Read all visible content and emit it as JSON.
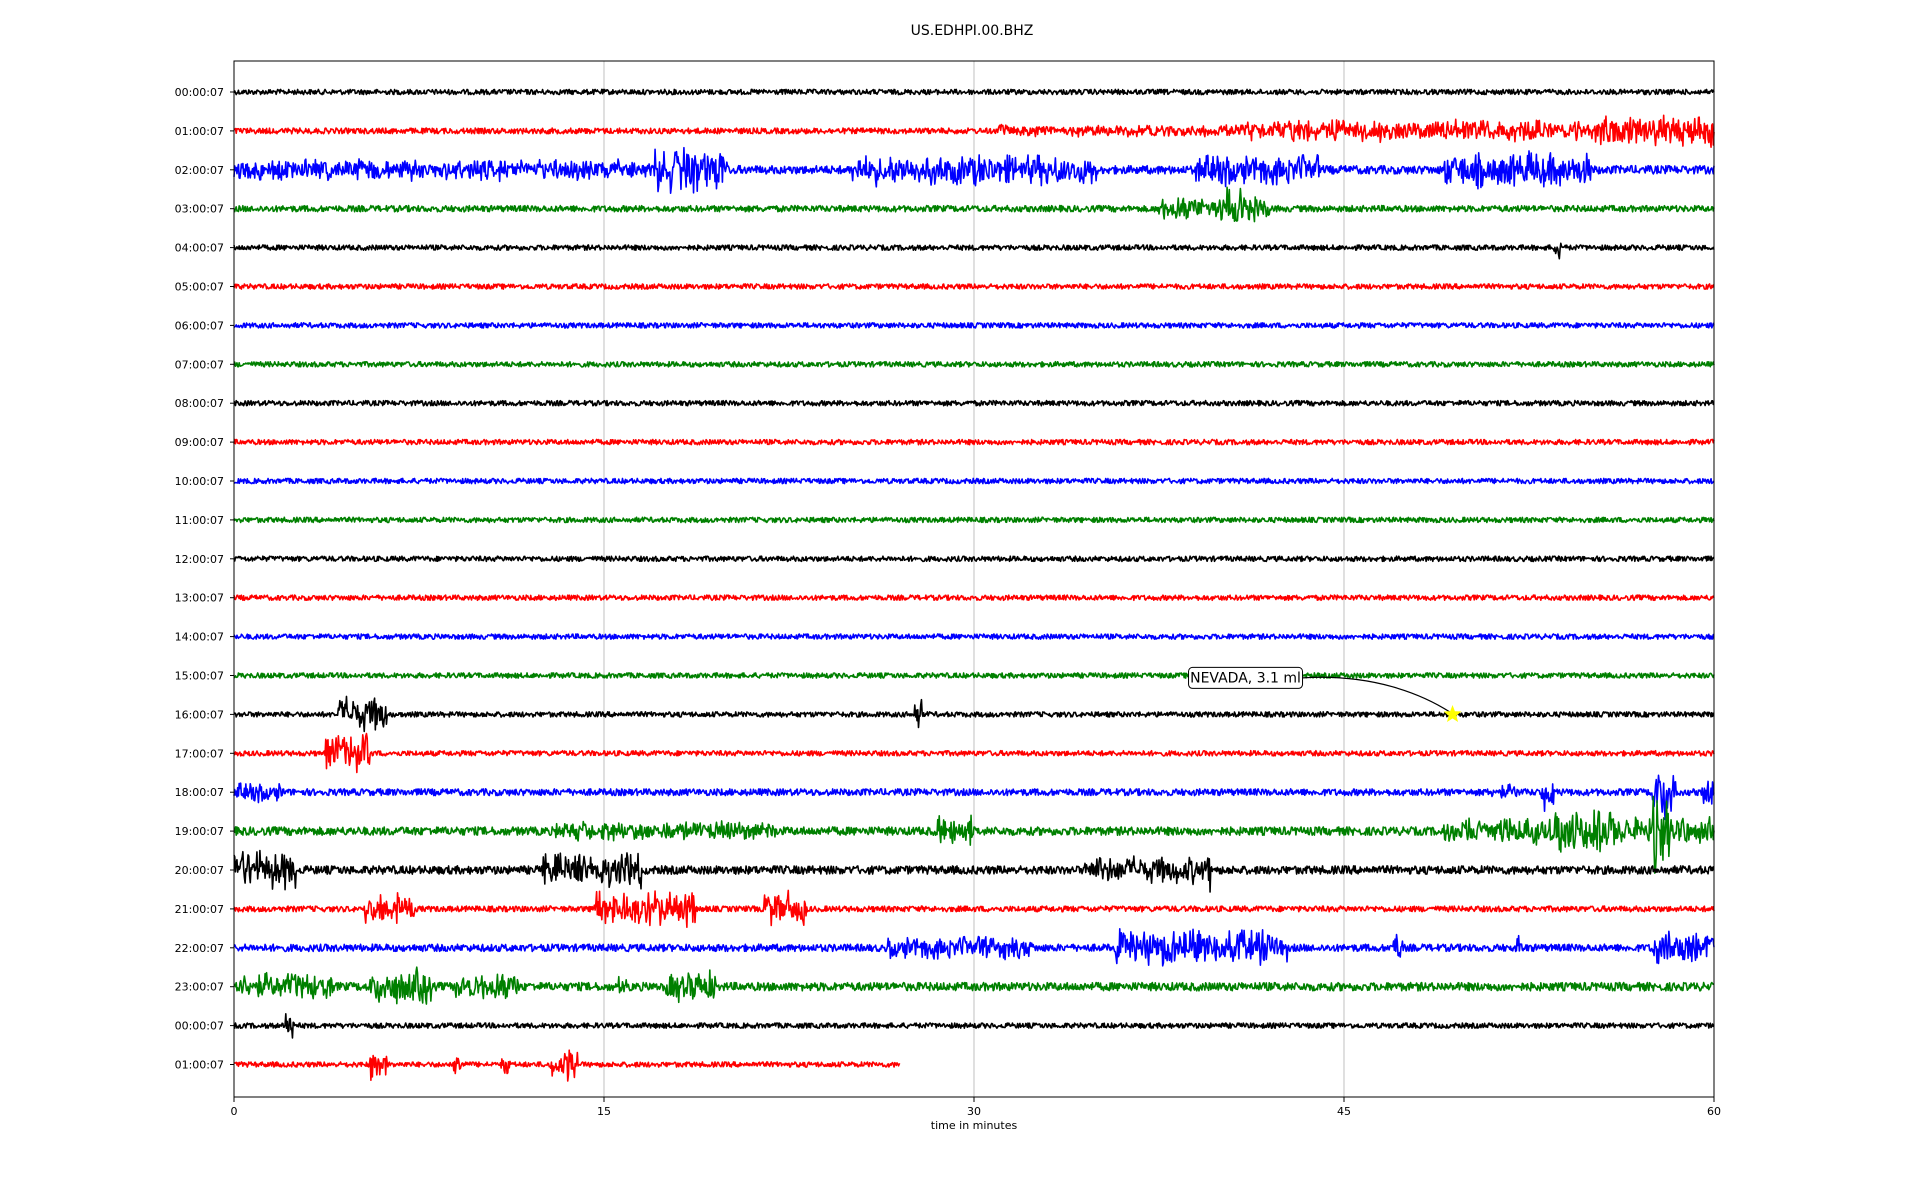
{
  "chart_data": {
    "type": "line",
    "title": "US.EDHPI.00.BHZ",
    "xlabel": "time in minutes",
    "ylabel": "",
    "xlim": [
      0,
      60
    ],
    "x_ticks": [
      "0",
      "15",
      "30",
      "45",
      "60"
    ],
    "grid": "vertical gridlines at 15, 30, 45",
    "legend": "none",
    "line_colors": [
      "#000000",
      "#ff0000",
      "#0000ff",
      "#008000"
    ],
    "rows": [
      {
        "label": "00:00:07",
        "color": "#000000",
        "noise": 1.0,
        "end_minute": 60,
        "bursts": []
      },
      {
        "label": "01:00:07",
        "color": "#ff0000",
        "noise": 1.1,
        "end_minute": 60,
        "bursts": [
          {
            "start": 31,
            "end": 60,
            "amp": 3.0
          },
          {
            "start": 41,
            "end": 60,
            "amp": 5.5
          },
          {
            "start": 55,
            "end": 60,
            "amp": 8.0
          }
        ]
      },
      {
        "label": "02:00:07",
        "color": "#0000ff",
        "noise": 1.6,
        "end_minute": 60,
        "bursts": [
          {
            "start": 0,
            "end": 20,
            "amp": 5.5
          },
          {
            "start": 17,
            "end": 20,
            "amp": 12.0
          },
          {
            "start": 25,
            "end": 35,
            "amp": 8.0
          },
          {
            "start": 39,
            "end": 44,
            "amp": 8.0
          },
          {
            "start": 49,
            "end": 55,
            "amp": 9.0
          }
        ]
      },
      {
        "label": "03:00:07",
        "color": "#008000",
        "noise": 1.2,
        "end_minute": 60,
        "bursts": [
          {
            "start": 37.5,
            "end": 42,
            "amp": 6.0
          },
          {
            "start": 40,
            "end": 41,
            "amp": 10.0
          }
        ]
      },
      {
        "label": "04:00:07",
        "color": "#000000",
        "noise": 1.0,
        "end_minute": 60,
        "bursts": [
          {
            "start": 53.5,
            "end": 53.8,
            "amp": 6.0
          }
        ]
      },
      {
        "label": "05:00:07",
        "color": "#ff0000",
        "noise": 1.0,
        "end_minute": 60,
        "bursts": []
      },
      {
        "label": "06:00:07",
        "color": "#0000ff",
        "noise": 1.0,
        "end_minute": 60,
        "bursts": []
      },
      {
        "label": "07:00:07",
        "color": "#008000",
        "noise": 1.0,
        "end_minute": 60,
        "bursts": []
      },
      {
        "label": "08:00:07",
        "color": "#000000",
        "noise": 1.0,
        "end_minute": 60,
        "bursts": []
      },
      {
        "label": "09:00:07",
        "color": "#ff0000",
        "noise": 1.0,
        "end_minute": 60,
        "bursts": []
      },
      {
        "label": "10:00:07",
        "color": "#0000ff",
        "noise": 1.0,
        "end_minute": 60,
        "bursts": []
      },
      {
        "label": "11:00:07",
        "color": "#008000",
        "noise": 1.0,
        "end_minute": 60,
        "bursts": []
      },
      {
        "label": "12:00:07",
        "color": "#000000",
        "noise": 1.0,
        "end_minute": 60,
        "bursts": []
      },
      {
        "label": "13:00:07",
        "color": "#ff0000",
        "noise": 1.0,
        "end_minute": 60,
        "bursts": []
      },
      {
        "label": "14:00:07",
        "color": "#0000ff",
        "noise": 1.0,
        "end_minute": 60,
        "bursts": []
      },
      {
        "label": "15:00:07",
        "color": "#008000",
        "noise": 1.0,
        "end_minute": 60,
        "bursts": []
      },
      {
        "label": "16:00:07",
        "color": "#000000",
        "noise": 1.0,
        "end_minute": 60,
        "bursts": [
          {
            "start": 4.2,
            "end": 6.2,
            "amp": 9.0
          },
          {
            "start": 27.6,
            "end": 27.9,
            "amp": 8.0
          }
        ]
      },
      {
        "label": "17:00:07",
        "color": "#ff0000",
        "noise": 1.0,
        "end_minute": 60,
        "bursts": [
          {
            "start": 3.7,
            "end": 5.5,
            "amp": 10.0
          }
        ]
      },
      {
        "label": "18:00:07",
        "color": "#0000ff",
        "noise": 1.3,
        "end_minute": 60,
        "bursts": [
          {
            "start": 0,
            "end": 2,
            "amp": 5.0
          },
          {
            "start": 51,
            "end": 52,
            "amp": 4.0
          },
          {
            "start": 53,
            "end": 53.5,
            "amp": 12.0
          },
          {
            "start": 57.5,
            "end": 58.5,
            "amp": 16.0
          },
          {
            "start": 59.5,
            "end": 60,
            "amp": 8.0
          }
        ]
      },
      {
        "label": "19:00:07",
        "color": "#008000",
        "noise": 1.6,
        "end_minute": 60,
        "bursts": [
          {
            "start": 13,
            "end": 22,
            "amp": 5.0
          },
          {
            "start": 28.5,
            "end": 30,
            "amp": 8.0
          },
          {
            "start": 49,
            "end": 60,
            "amp": 7.0
          },
          {
            "start": 53.5,
            "end": 56,
            "amp": 12.0
          },
          {
            "start": 57.5,
            "end": 58.2,
            "amp": 20.0
          }
        ]
      },
      {
        "label": "20:00:07",
        "color": "#000000",
        "noise": 1.6,
        "end_minute": 60,
        "bursts": [
          {
            "start": 0,
            "end": 2.5,
            "amp": 10.0
          },
          {
            "start": 12.5,
            "end": 16.5,
            "amp": 9.0
          },
          {
            "start": 34.5,
            "end": 39.5,
            "amp": 7.0
          },
          {
            "start": 39.3,
            "end": 39.6,
            "amp": 12.0
          }
        ]
      },
      {
        "label": "21:00:07",
        "color": "#ff0000",
        "noise": 1.1,
        "end_minute": 60,
        "bursts": [
          {
            "start": 5.3,
            "end": 7.3,
            "amp": 8.0
          },
          {
            "start": 14.5,
            "end": 18.7,
            "amp": 9.0
          },
          {
            "start": 21.5,
            "end": 23.2,
            "amp": 9.0
          }
        ]
      },
      {
        "label": "22:00:07",
        "color": "#0000ff",
        "noise": 1.4,
        "end_minute": 60,
        "bursts": [
          {
            "start": 26.5,
            "end": 32.5,
            "amp": 6.0
          },
          {
            "start": 35.7,
            "end": 42.7,
            "amp": 9.0
          },
          {
            "start": 47,
            "end": 47.4,
            "amp": 8.0
          },
          {
            "start": 52,
            "end": 52.3,
            "amp": 6.0
          },
          {
            "start": 57.5,
            "end": 60,
            "amp": 9.0
          }
        ]
      },
      {
        "label": "23:00:07",
        "color": "#008000",
        "noise": 1.6,
        "end_minute": 60,
        "bursts": [
          {
            "start": 0,
            "end": 4,
            "amp": 7.0
          },
          {
            "start": 5.5,
            "end": 8,
            "amp": 9.0
          },
          {
            "start": 9,
            "end": 11.5,
            "amp": 7.0
          },
          {
            "start": 15.5,
            "end": 16,
            "amp": 5.0
          },
          {
            "start": 17.5,
            "end": 19.5,
            "amp": 8.0
          }
        ]
      },
      {
        "label": "00:00:07",
        "color": "#000000",
        "noise": 1.0,
        "end_minute": 60,
        "bursts": [
          {
            "start": 2.1,
            "end": 2.5,
            "amp": 9.0
          }
        ]
      },
      {
        "label": "01:00:07",
        "color": "#ff0000",
        "noise": 1.0,
        "end_minute": 27,
        "bursts": [
          {
            "start": 5.5,
            "end": 6.2,
            "amp": 9.0
          },
          {
            "start": 8.9,
            "end": 9.2,
            "amp": 8.0
          },
          {
            "start": 10.8,
            "end": 11.2,
            "amp": 5.0
          },
          {
            "start": 12.8,
            "end": 14,
            "amp": 6.0
          },
          {
            "start": 13.5,
            "end": 13.8,
            "amp": 10.0
          }
        ]
      }
    ],
    "annotations": [
      {
        "text": "NEVADA, 3.1 ml",
        "row": 16,
        "minute": 49.4,
        "marker": "star",
        "marker_color": "#ffff00"
      }
    ]
  }
}
